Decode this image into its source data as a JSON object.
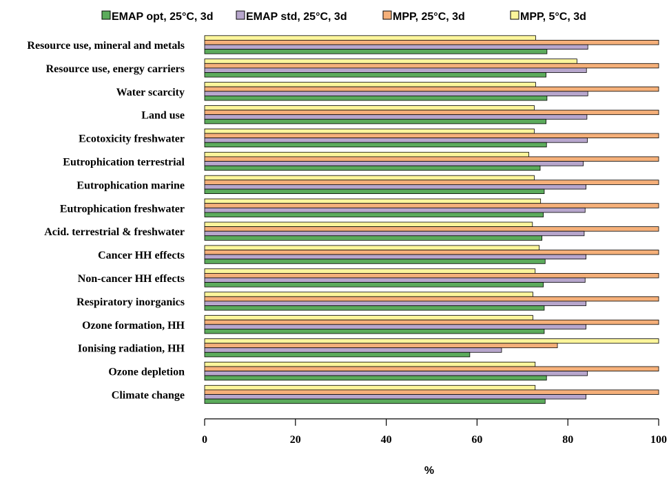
{
  "chart_data": {
    "type": "bar",
    "orientation": "horizontal",
    "categories": [
      "Climate change",
      "Ozone depletion",
      "Ionising radiation, HH",
      "Ozone formation, HH",
      "Respiratory inorganics",
      "Non-cancer HH effects",
      "Cancer HH effects",
      "Acid. terrestrial & freshwater",
      "Eutrophication freshwater",
      "Eutrophication marine",
      "Eutrophication terrestrial",
      "Ecotoxicity freshwater",
      "Land use",
      "Water scarcity",
      "Resource use, energy carriers",
      "Resource use, mineral and metals"
    ],
    "series": [
      {
        "name": "EMAP opt, 25°C, 3d",
        "color": "#5cab5c",
        "values": [
          75,
          75.3,
          58.4,
          74.8,
          74.8,
          74.6,
          75,
          74.3,
          74.6,
          74.8,
          73.9,
          75.3,
          75.2,
          75.4,
          75.2,
          75.4
        ]
      },
      {
        "name": "EMAP std, 25°C, 3d",
        "color": "#b7a6cc",
        "values": [
          84,
          84.3,
          65.4,
          84,
          84,
          83.8,
          84,
          83.6,
          83.8,
          84,
          83.4,
          84.3,
          84.2,
          84.4,
          84.1,
          84.4
        ]
      },
      {
        "name": "MPP, 25°C, 3d",
        "color": "#f5b07a",
        "values": [
          100,
          100,
          77.7,
          100,
          100,
          100,
          100,
          100,
          100,
          100,
          100,
          100,
          100,
          100,
          100,
          100
        ]
      },
      {
        "name": "MPP, 5°C, 3d",
        "color": "#fbf59b",
        "values": [
          72.8,
          72.8,
          100,
          72.3,
          72.3,
          72.8,
          73.7,
          72.2,
          74,
          72.6,
          71.4,
          72.6,
          72.6,
          72.9,
          82,
          72.9
        ]
      }
    ],
    "xlabel": "%",
    "xlim": [
      0,
      100
    ],
    "xticks": [
      0,
      20,
      40,
      60,
      80,
      100
    ],
    "grid": false,
    "legend_position": "top"
  }
}
